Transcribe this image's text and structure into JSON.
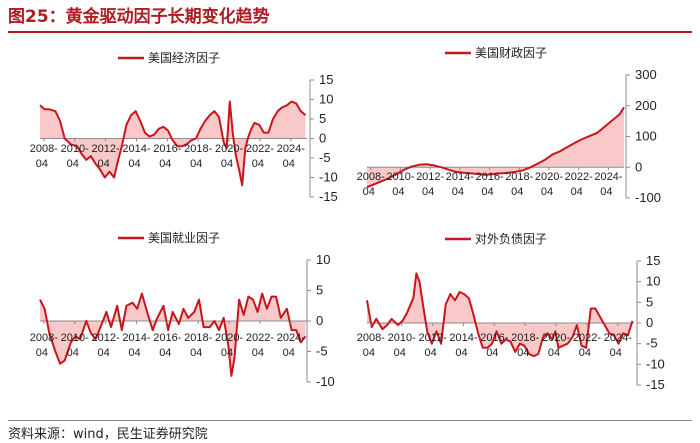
{
  "page": {
    "title": "图25：黄金驱动因子长期变化趋势",
    "source": "资料来源：wind，民生证券研究院"
  },
  "colors": {
    "line": "#c8161d",
    "fill": "#f9c9c9",
    "axis": "#8c8c8c"
  },
  "chart_data": [
    {
      "type": "area",
      "title": "美国经济因子",
      "legend": "美国经济因子",
      "xticks": [
        "2008-04",
        "2010-04",
        "2012-04",
        "2014-04",
        "2016-04",
        "2018-04",
        "2020-04",
        "2022-04",
        "2024-04"
      ],
      "xtick_years": [
        2008.25,
        2010.25,
        2012.25,
        2014.25,
        2016.25,
        2018.25,
        2020.25,
        2022.25,
        2024.25
      ],
      "xrange": [
        2008.0,
        2025.3
      ],
      "ylim": [
        -15,
        15
      ],
      "yticks": [
        "15",
        "10",
        "5",
        "0",
        "-5",
        "-10",
        "-15"
      ],
      "ytick_values": [
        15,
        10,
        5,
        0,
        -5,
        -10,
        -15
      ],
      "x": [
        2008.0,
        2008.3,
        2008.6,
        2009.0,
        2009.3,
        2009.6,
        2010.0,
        2010.4,
        2010.7,
        2011.0,
        2011.3,
        2011.6,
        2011.9,
        2012.2,
        2012.5,
        2012.8,
        2013.0,
        2013.3,
        2013.6,
        2013.9,
        2014.2,
        2014.5,
        2014.8,
        2015.1,
        2015.4,
        2015.7,
        2016.0,
        2016.3,
        2016.6,
        2016.9,
        2017.2,
        2017.5,
        2017.8,
        2018.1,
        2018.4,
        2018.7,
        2019.0,
        2019.3,
        2019.6,
        2019.9,
        2020.1,
        2020.3,
        2020.5,
        2020.7,
        2020.9,
        2021.1,
        2021.3,
        2021.5,
        2021.7,
        2021.9,
        2022.2,
        2022.5,
        2022.8,
        2023.1,
        2023.4,
        2023.7,
        2024.0,
        2024.3,
        2024.6,
        2024.9,
        2025.2
      ],
      "values": [
        8.5,
        7.5,
        7.5,
        7.0,
        4.5,
        0.0,
        -1.5,
        -2.0,
        -4.0,
        -5.5,
        -4.5,
        -6.5,
        -8.0,
        -10.0,
        -8.5,
        -10.0,
        -6.5,
        -2.0,
        3.5,
        6.0,
        7.0,
        4.5,
        1.5,
        0.5,
        1.0,
        2.5,
        3.0,
        2.0,
        -0.5,
        -2.0,
        -2.0,
        -1.5,
        -0.5,
        0.0,
        2.5,
        4.5,
        6.0,
        7.0,
        5.5,
        -1.0,
        -2.5,
        9.5,
        1.0,
        -4.5,
        -8.0,
        -12.0,
        -2.5,
        0.5,
        2.5,
        4.0,
        3.5,
        1.5,
        1.5,
        5.0,
        7.0,
        8.0,
        8.5,
        9.5,
        9.0,
        7.0,
        6.0
      ]
    },
    {
      "type": "area",
      "title": "美国财政因子",
      "legend": "美国财政因子",
      "xticks": [
        "2008-04",
        "2010-04",
        "2012-04",
        "2014-04",
        "2016-04",
        "2018-04",
        "2020-04",
        "2022-04",
        "2024-04"
      ],
      "xtick_years": [
        2008.25,
        2010.25,
        2012.25,
        2014.25,
        2016.25,
        2018.25,
        2020.25,
        2022.25,
        2024.25
      ],
      "xrange": [
        2008.0,
        2025.3
      ],
      "ylim": [
        -100,
        300
      ],
      "yticks": [
        "300",
        "200",
        "100",
        "0",
        "-100"
      ],
      "ytick_values": [
        300,
        200,
        100,
        0,
        -100
      ],
      "x": [
        2008.0,
        2008.5,
        2009.0,
        2009.5,
        2010.0,
        2010.5,
        2011.0,
        2011.5,
        2012.0,
        2012.5,
        2013.0,
        2013.5,
        2014.0,
        2014.5,
        2015.0,
        2015.5,
        2016.0,
        2016.5,
        2017.0,
        2017.5,
        2018.0,
        2018.5,
        2019.0,
        2019.5,
        2020.0,
        2020.5,
        2021.0,
        2021.5,
        2022.0,
        2022.5,
        2023.0,
        2023.5,
        2024.0,
        2024.5,
        2025.0,
        2025.3
      ],
      "values": [
        -65,
        -55,
        -45,
        -35,
        -22,
        -8,
        2,
        8,
        10,
        6,
        0,
        -8,
        -15,
        -18,
        -20,
        -22,
        -25,
        -22,
        -20,
        -18,
        -15,
        -10,
        0,
        12,
        25,
        42,
        52,
        66,
        80,
        92,
        102,
        112,
        132,
        152,
        172,
        195
      ]
    },
    {
      "type": "area",
      "title": "美国就业因子",
      "legend": "美国就业因子",
      "xticks": [
        "2008-04",
        "2010-04",
        "2012-04",
        "2014-04",
        "2016-04",
        "2018-04",
        "2020-04",
        "2022-04",
        "2024-04"
      ],
      "xtick_years": [
        2008.25,
        2010.25,
        2012.25,
        2014.25,
        2016.25,
        2018.25,
        2020.25,
        2022.25,
        2024.25
      ],
      "xrange": [
        2008.0,
        2025.3
      ],
      "ylim": [
        -10,
        10
      ],
      "yticks": [
        "10",
        "5",
        "0",
        "-5",
        "-10"
      ],
      "ytick_values": [
        10,
        5,
        0,
        -5,
        -10
      ],
      "x": [
        2008.0,
        2008.3,
        2008.6,
        2009.0,
        2009.3,
        2009.6,
        2010.0,
        2010.3,
        2010.6,
        2011.0,
        2011.3,
        2011.6,
        2012.0,
        2012.3,
        2012.6,
        2013.0,
        2013.3,
        2013.6,
        2014.0,
        2014.3,
        2014.6,
        2015.0,
        2015.3,
        2015.6,
        2016.0,
        2016.3,
        2016.6,
        2017.0,
        2017.3,
        2017.6,
        2018.0,
        2018.3,
        2018.6,
        2019.0,
        2019.3,
        2019.6,
        2019.9,
        2020.2,
        2020.4,
        2020.6,
        2020.9,
        2021.2,
        2021.5,
        2021.8,
        2022.1,
        2022.4,
        2022.7,
        2023.0,
        2023.3,
        2023.6,
        2024.0,
        2024.3,
        2024.6,
        2024.9,
        2025.2
      ],
      "values": [
        3.5,
        2.0,
        -2.0,
        -5.0,
        -7.0,
        -6.5,
        -3.5,
        -2.5,
        -3.0,
        0.0,
        -2.0,
        -3.0,
        -0.5,
        1.5,
        -1.0,
        2.5,
        -1.5,
        2.5,
        3.0,
        2.0,
        4.5,
        1.0,
        -1.5,
        0.5,
        2.5,
        -1.5,
        1.5,
        -0.5,
        2.0,
        0.5,
        1.5,
        3.5,
        -1.0,
        -1.0,
        0.0,
        -1.5,
        0.5,
        -4.0,
        -9.0,
        -6.0,
        3.5,
        1.0,
        4.0,
        3.5,
        1.5,
        4.5,
        2.0,
        4.0,
        4.0,
        0.5,
        2.0,
        -1.5,
        -1.5,
        -3.5,
        -2.5
      ]
    },
    {
      "type": "area",
      "title": "对外负债因子",
      "legend": "对外负债因子",
      "xticks": [
        "2008-04",
        "2010-04",
        "2012-04",
        "2014-04",
        "2016-04",
        "2018-04",
        "2020-04",
        "2022-04",
        "2024-04"
      ],
      "xtick_years": [
        2008.25,
        2010.25,
        2012.25,
        2014.25,
        2016.25,
        2018.25,
        2020.25,
        2022.25,
        2024.25
      ],
      "xrange": [
        2008.0,
        2025.3
      ],
      "ylim": [
        -15,
        15
      ],
      "yticks": [
        "15",
        "10",
        "5",
        "0",
        "-5",
        "-10",
        "-15"
      ],
      "ytick_values": [
        15,
        10,
        5,
        0,
        -5,
        -10,
        -15
      ],
      "x": [
        2008.0,
        2008.3,
        2008.6,
        2009.0,
        2009.3,
        2009.6,
        2010.0,
        2010.3,
        2010.6,
        2011.0,
        2011.2,
        2011.4,
        2011.6,
        2011.9,
        2012.2,
        2012.5,
        2012.8,
        2013.1,
        2013.4,
        2013.7,
        2014.0,
        2014.3,
        2014.6,
        2014.9,
        2015.2,
        2015.5,
        2015.8,
        2016.1,
        2016.4,
        2016.7,
        2017.0,
        2017.3,
        2017.6,
        2017.9,
        2018.2,
        2018.5,
        2018.8,
        2019.1,
        2019.4,
        2019.7,
        2020.0,
        2020.2,
        2020.4,
        2020.7,
        2021.0,
        2021.3,
        2021.6,
        2021.9,
        2022.2,
        2022.5,
        2022.8,
        2023.1,
        2023.4,
        2023.7,
        2024.0,
        2024.3,
        2024.6,
        2024.9,
        2025.2
      ],
      "values": [
        5.5,
        -1.0,
        1.0,
        -1.5,
        -0.5,
        1.0,
        -0.5,
        0.5,
        2.5,
        6.0,
        12.0,
        10.0,
        5.0,
        -2.0,
        -5.0,
        -2.0,
        -5.0,
        4.5,
        7.0,
        5.5,
        7.5,
        7.0,
        6.0,
        2.0,
        -2.5,
        -6.0,
        -6.0,
        -5.0,
        -2.0,
        -5.0,
        -4.0,
        -4.5,
        -7.0,
        -5.0,
        -5.5,
        -7.5,
        -8.0,
        -7.5,
        -3.5,
        -2.5,
        -4.0,
        -2.0,
        -6.0,
        -5.5,
        -5.0,
        -3.5,
        -0.5,
        -5.5,
        -6.0,
        3.5,
        3.5,
        1.5,
        -0.5,
        -2.5,
        -3.0,
        -5.0,
        -2.5,
        -3.0,
        0.5
      ]
    }
  ]
}
